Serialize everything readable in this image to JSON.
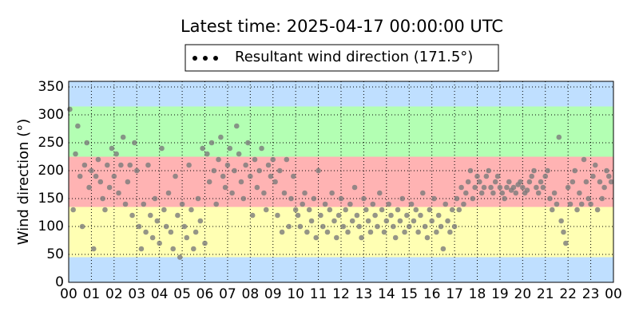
{
  "chart_data": {
    "type": "scatter",
    "title": "Latest time: 2025-04-17 00:00:00 UTC",
    "ylabel": "Wind direction (°)",
    "legend_marker_color": "#000000",
    "grid": true,
    "xlim": [
      0,
      24
    ],
    "ylim": [
      0,
      360
    ],
    "yticks": [
      0,
      50,
      100,
      150,
      200,
      250,
      300,
      350
    ],
    "xticks": [
      {
        "value": 0,
        "label": "00"
      },
      {
        "value": 1,
        "label": "01"
      },
      {
        "value": 2,
        "label": "02"
      },
      {
        "value": 3,
        "label": "03"
      },
      {
        "value": 4,
        "label": "04"
      },
      {
        "value": 5,
        "label": "05"
      },
      {
        "value": 6,
        "label": "06"
      },
      {
        "value": 7,
        "label": "07"
      },
      {
        "value": 8,
        "label": "08"
      },
      {
        "value": 9,
        "label": "09"
      },
      {
        "value": 10,
        "label": "10"
      },
      {
        "value": 11,
        "label": "11"
      },
      {
        "value": 12,
        "label": "12"
      },
      {
        "value": 13,
        "label": "13"
      },
      {
        "value": 14,
        "label": "14"
      },
      {
        "value": 15,
        "label": "15"
      },
      {
        "value": 16,
        "label": "16"
      },
      {
        "value": 17,
        "label": "17"
      },
      {
        "value": 18,
        "label": "18"
      },
      {
        "value": 19,
        "label": "19"
      },
      {
        "value": 20,
        "label": "20"
      },
      {
        "value": 21,
        "label": "21"
      },
      {
        "value": 22,
        "label": "22"
      },
      {
        "value": 23,
        "label": "23"
      },
      {
        "value": 24,
        "label": "00"
      }
    ],
    "bands": [
      {
        "from": 0,
        "to": 45,
        "color": "#bfdfff"
      },
      {
        "from": 45,
        "to": 135,
        "color": "#ffffb3"
      },
      {
        "from": 135,
        "to": 225,
        "color": "#ffb3b3"
      },
      {
        "from": 225,
        "to": 315,
        "color": "#b3ffb3"
      },
      {
        "from": 315,
        "to": 360,
        "color": "#bfdfff"
      }
    ],
    "x": [
      0.05,
      0.2,
      0.3,
      0.4,
      0.5,
      0.6,
      0.7,
      0.8,
      0.9,
      1.0,
      1.1,
      1.2,
      1.3,
      1.4,
      1.5,
      1.6,
      1.7,
      1.8,
      1.9,
      2.0,
      2.1,
      2.2,
      2.3,
      2.4,
      2.5,
      2.6,
      2.7,
      2.8,
      2.9,
      3.0,
      3.1,
      3.2,
      3.3,
      3.4,
      3.5,
      3.6,
      3.7,
      3.8,
      3.9,
      4.0,
      4.1,
      4.2,
      4.3,
      4.4,
      4.5,
      4.6,
      4.7,
      4.8,
      4.9,
      5.0,
      5.1,
      5.2,
      5.3,
      5.4,
      5.5,
      5.6,
      5.7,
      5.8,
      5.9,
      6.0,
      6.1,
      6.2,
      6.3,
      6.4,
      6.5,
      6.6,
      6.7,
      6.8,
      6.9,
      7.0,
      7.1,
      7.2,
      7.3,
      7.4,
      7.5,
      7.6,
      7.7,
      7.8,
      7.9,
      8.0,
      8.1,
      8.2,
      8.3,
      8.4,
      8.5,
      8.6,
      8.7,
      8.8,
      8.9,
      9.0,
      9.1,
      9.2,
      9.3,
      9.4,
      9.5,
      9.6,
      9.7,
      9.8,
      9.9,
      10.0,
      10.1,
      10.2,
      10.3,
      10.4,
      10.5,
      10.6,
      10.7,
      10.8,
      10.9,
      11.0,
      11.1,
      11.2,
      11.3,
      11.4,
      11.5,
      11.6,
      11.7,
      11.8,
      11.9,
      12.0,
      12.1,
      12.2,
      12.3,
      12.4,
      12.5,
      12.6,
      12.7,
      12.8,
      12.9,
      13.0,
      13.1,
      13.2,
      13.3,
      13.4,
      13.5,
      13.6,
      13.7,
      13.8,
      13.9,
      14.0,
      14.1,
      14.2,
      14.3,
      14.4,
      14.5,
      14.6,
      14.7,
      14.8,
      14.9,
      15.0,
      15.1,
      15.2,
      15.3,
      15.4,
      15.5,
      15.6,
      15.7,
      15.8,
      15.9,
      16.0,
      16.1,
      16.2,
      16.3,
      16.4,
      16.5,
      16.6,
      16.7,
      16.8,
      16.9,
      17.0,
      17.1,
      17.2,
      17.3,
      17.4,
      17.5,
      17.6,
      17.7,
      17.8,
      17.9,
      18.0,
      18.1,
      18.2,
      18.3,
      18.4,
      18.5,
      18.6,
      18.7,
      18.8,
      18.9,
      19.0,
      19.1,
      19.2,
      19.3,
      19.4,
      19.5,
      19.6,
      19.7,
      19.8,
      19.9,
      20.0,
      20.1,
      20.2,
      20.3,
      20.4,
      20.5,
      20.6,
      20.7,
      20.8,
      20.9,
      21.0,
      21.1,
      21.2,
      21.3,
      21.4,
      21.5,
      21.6,
      21.7,
      21.8,
      21.9,
      22.0,
      22.1,
      22.2,
      22.3,
      22.4,
      22.5,
      22.6,
      22.7,
      22.8,
      22.9,
      23.0,
      23.1,
      23.2,
      23.3,
      23.4,
      23.5,
      23.6,
      23.7,
      23.8,
      23.9
    ],
    "series": [
      {
        "name": "Resultant wind direction (171.5°)",
        "color": "#7a7a7a",
        "values": [
          310,
          130,
          230,
          280,
          190,
          100,
          210,
          250,
          170,
          200,
          60,
          190,
          220,
          180,
          150,
          130,
          210,
          170,
          240,
          190,
          230,
          160,
          210,
          260,
          140,
          180,
          210,
          120,
          250,
          200,
          100,
          60,
          140,
          90,
          210,
          120,
          80,
          150,
          110,
          70,
          240,
          130,
          100,
          160,
          90,
          60,
          190,
          120,
          45,
          140,
          100,
          80,
          210,
          130,
          60,
          90,
          150,
          110,
          240,
          70,
          230,
          180,
          250,
          200,
          140,
          220,
          260,
          190,
          170,
          210,
          240,
          160,
          200,
          280,
          230,
          180,
          150,
          210,
          250,
          190,
          120,
          220,
          170,
          200,
          240,
          160,
          130,
          210,
          190,
          220,
          180,
          120,
          200,
          90,
          160,
          220,
          100,
          150,
          190,
          130,
          120,
          100,
          140,
          160,
          90,
          130,
          110,
          150,
          80,
          200,
          120,
          100,
          140,
          90,
          130,
          160,
          110,
          80,
          120,
          150,
          100,
          130,
          90,
          140,
          110,
          170,
          120,
          100,
          80,
          150,
          130,
          110,
          90,
          140,
          120,
          100,
          160,
          130,
          90,
          110,
          140,
          120,
          100,
          80,
          130,
          110,
          150,
          90,
          120,
          100,
          140,
          110,
          130,
          90,
          120,
          160,
          100,
          80,
          130,
          110,
          150,
          90,
          120,
          100,
          60,
          140,
          110,
          90,
          130,
          100,
          150,
          130,
          170,
          140,
          160,
          180,
          200,
          150,
          170,
          190,
          180,
          160,
          170,
          190,
          200,
          170,
          160,
          180,
          190,
          170,
          160,
          150,
          170,
          180,
          165,
          170,
          160,
          175,
          180,
          170,
          160,
          165,
          180,
          190,
          200,
          170,
          160,
          180,
          170,
          190,
          200,
          150,
          130,
          160,
          140,
          260,
          110,
          90,
          70,
          170,
          140,
          180,
          200,
          130,
          160,
          140,
          220,
          180,
          150,
          140,
          190,
          210,
          130,
          180,
          150,
          170,
          200,
          190,
          180
        ]
      }
    ]
  }
}
